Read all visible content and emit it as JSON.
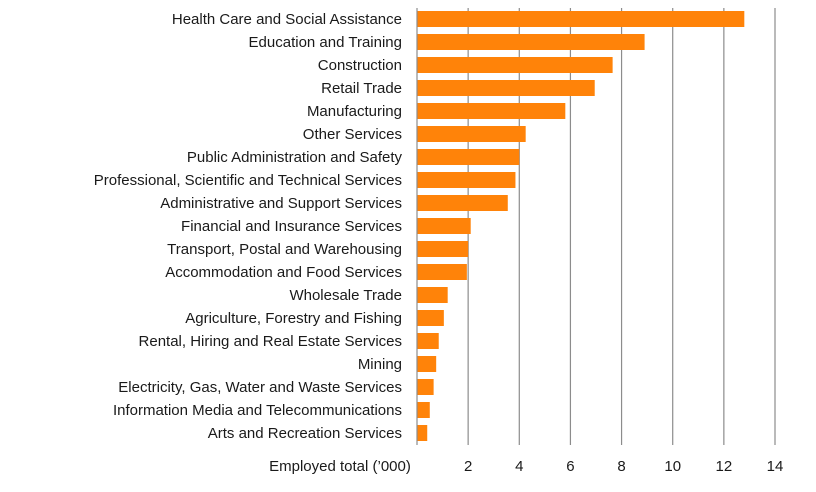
{
  "chart_data": {
    "type": "bar",
    "orientation": "horizontal",
    "title": "",
    "xlabel": "Employed total (’000)",
    "ylabel": "",
    "xlim": [
      0,
      14
    ],
    "xticks": [
      2,
      4,
      6,
      8,
      10,
      12,
      14
    ],
    "grid": "vertical",
    "legend": "none",
    "bar_color": "#FF8309",
    "categories": [
      "Health Care and Social Assistance",
      "Education and Training",
      "Construction",
      "Retail Trade",
      "Manufacturing",
      "Other Services",
      "Public Administration and Safety",
      "Professional, Scientific and Technical Services",
      "Administrative and Support Services",
      "Financial and Insurance Services",
      "Transport, Postal and Warehousing",
      "Accommodation and Food Services",
      "Wholesale Trade",
      "Agriculture, Forestry and Fishing",
      "Rental, Hiring and Real Estate Services",
      "Mining",
      "Electricity, Gas, Water and Waste Services",
      "Information Media and Telecommunications",
      "Arts and Recreation Services"
    ],
    "values": [
      12.8,
      8.9,
      7.65,
      6.95,
      5.8,
      4.25,
      4.0,
      3.85,
      3.55,
      2.1,
      2.0,
      1.95,
      1.2,
      1.05,
      0.85,
      0.75,
      0.65,
      0.5,
      0.4
    ]
  }
}
